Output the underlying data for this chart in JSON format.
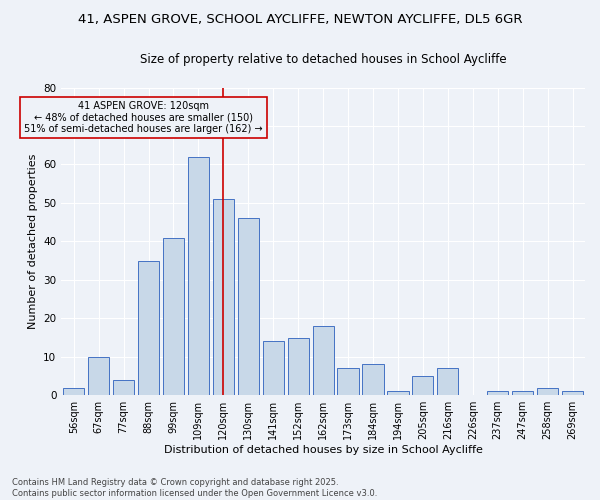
{
  "title_line1": "41, ASPEN GROVE, SCHOOL AYCLIFFE, NEWTON AYCLIFFE, DL5 6GR",
  "title_line2": "Size of property relative to detached houses in School Aycliffe",
  "xlabel": "Distribution of detached houses by size in School Aycliffe",
  "ylabel": "Number of detached properties",
  "categories": [
    "56sqm",
    "67sqm",
    "77sqm",
    "88sqm",
    "99sqm",
    "109sqm",
    "120sqm",
    "130sqm",
    "141sqm",
    "152sqm",
    "162sqm",
    "173sqm",
    "184sqm",
    "194sqm",
    "205sqm",
    "216sqm",
    "226sqm",
    "237sqm",
    "247sqm",
    "258sqm",
    "269sqm"
  ],
  "values": [
    2,
    10,
    4,
    35,
    41,
    62,
    51,
    46,
    14,
    15,
    18,
    7,
    8,
    1,
    5,
    7,
    0,
    1,
    1,
    2,
    1
  ],
  "bar_color": "#c8d8e8",
  "bar_edge_color": "#4472c4",
  "vline_x": 6,
  "vline_color": "#cc0000",
  "annotation_text": "41 ASPEN GROVE: 120sqm\n← 48% of detached houses are smaller (150)\n51% of semi-detached houses are larger (162) →",
  "annotation_box_color": "#cc0000",
  "ylim": [
    0,
    80
  ],
  "yticks": [
    0,
    10,
    20,
    30,
    40,
    50,
    60,
    70,
    80
  ],
  "bg_color": "#eef2f8",
  "grid_color": "#ffffff",
  "footer": "Contains HM Land Registry data © Crown copyright and database right 2025.\nContains public sector information licensed under the Open Government Licence v3.0.",
  "title_fontsize": 9.5,
  "subtitle_fontsize": 8.5,
  "axis_label_fontsize": 8,
  "tick_fontsize": 7,
  "annotation_fontsize": 7,
  "footer_fontsize": 6
}
